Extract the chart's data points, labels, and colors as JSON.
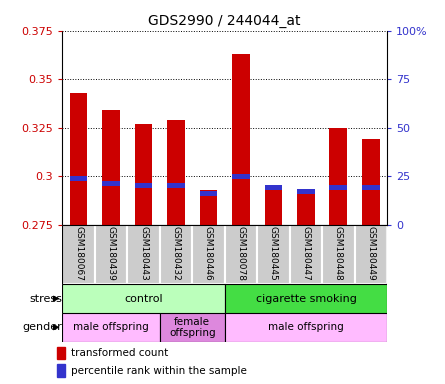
{
  "title": "GDS2990 / 244044_at",
  "samples": [
    "GSM180067",
    "GSM180439",
    "GSM180443",
    "GSM180432",
    "GSM180446",
    "GSM180078",
    "GSM180445",
    "GSM180447",
    "GSM180448",
    "GSM180449"
  ],
  "red_values": [
    0.343,
    0.334,
    0.327,
    0.329,
    0.293,
    0.363,
    0.295,
    0.291,
    0.325,
    0.319
  ],
  "blue_values": [
    0.299,
    0.296,
    0.295,
    0.295,
    0.291,
    0.3,
    0.294,
    0.292,
    0.294,
    0.294
  ],
  "ymin": 0.275,
  "ymax": 0.375,
  "yticks": [
    0.275,
    0.3,
    0.325,
    0.35,
    0.375
  ],
  "right_yticks": [
    0,
    25,
    50,
    75,
    100
  ],
  "right_yticklabels": [
    "0",
    "25",
    "50",
    "75",
    "100%"
  ],
  "bar_width": 0.55,
  "red_color": "#cc0000",
  "blue_color": "#3333cc",
  "stress_row": {
    "groups": [
      {
        "label": "control",
        "start": 0,
        "end": 4,
        "color": "#bbffbb"
      },
      {
        "label": "cigarette smoking",
        "start": 5,
        "end": 9,
        "color": "#44dd44"
      }
    ]
  },
  "gender_row": {
    "groups": [
      {
        "label": "male offspring",
        "start": 0,
        "end": 2,
        "color": "#ffbbff"
      },
      {
        "label": "female\noffspring",
        "start": 3,
        "end": 4,
        "color": "#dd88dd"
      },
      {
        "label": "male offspring",
        "start": 5,
        "end": 9,
        "color": "#ffbbff"
      }
    ]
  },
  "legend_items": [
    {
      "color": "#cc0000",
      "label": "transformed count"
    },
    {
      "color": "#3333cc",
      "label": "percentile rank within the sample"
    }
  ],
  "tick_label_color": "#cc0000",
  "right_tick_color": "#3333cc",
  "label_bg_color": "#cccccc",
  "label_border_color": "#ffffff"
}
